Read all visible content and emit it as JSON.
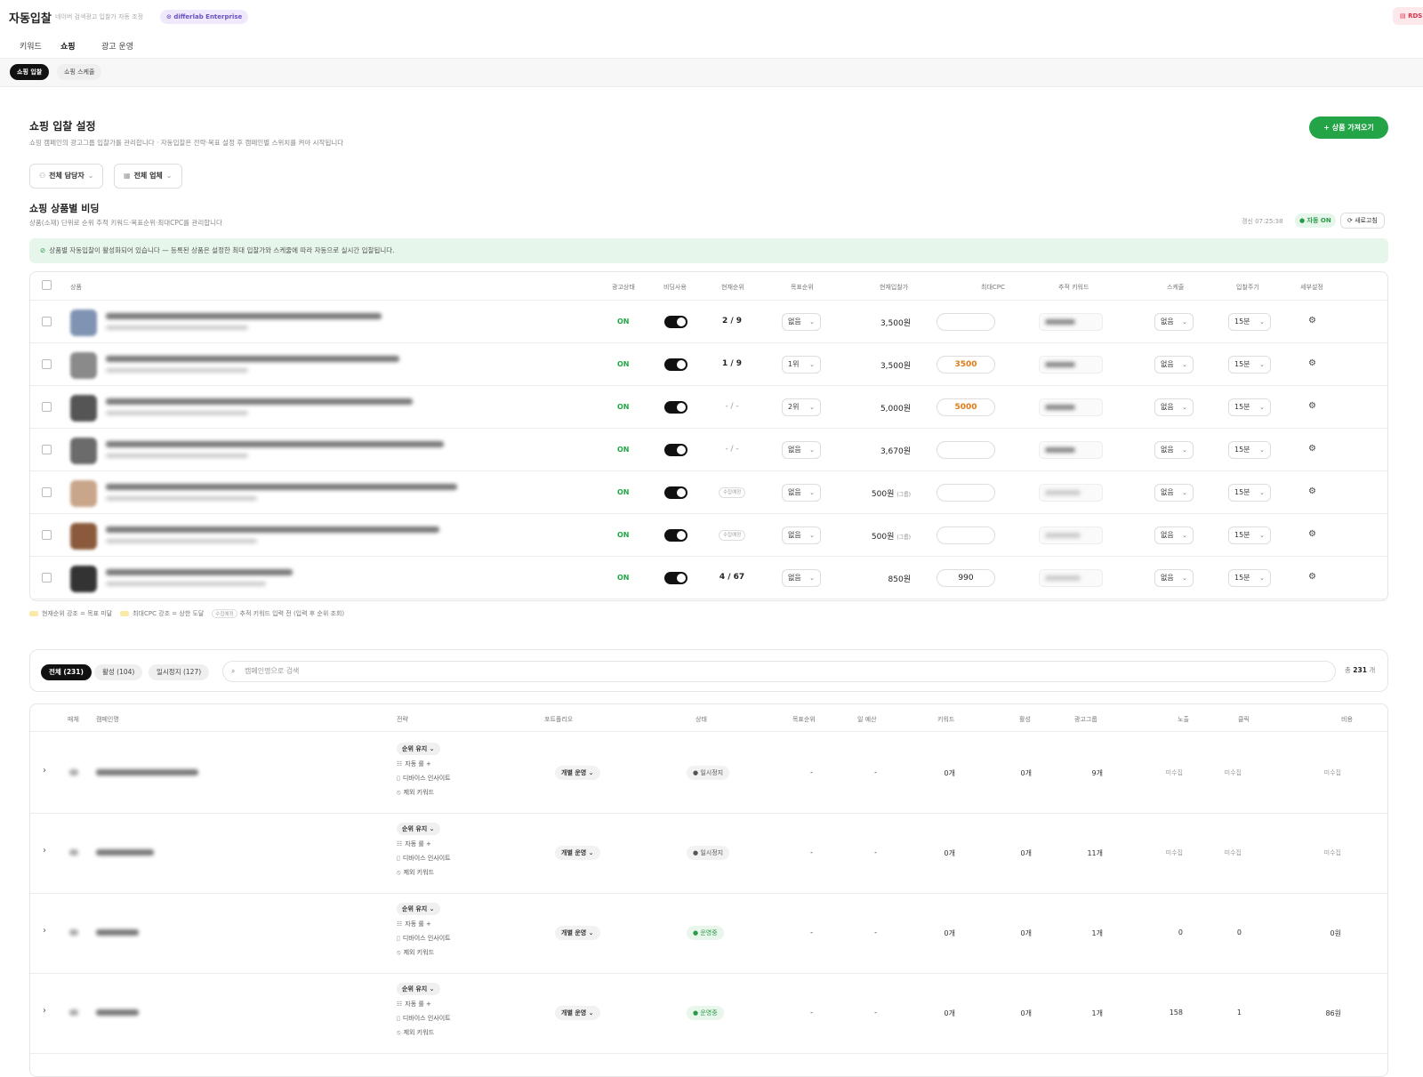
{
  "header": {
    "title": "자동입찰",
    "subtitle": "네이버 검색광고 입찰가 자동 조정",
    "org_badge": "differlab Enterprise",
    "db_badge": "RDS"
  },
  "tabs": [
    {
      "label": "키워드",
      "active": false
    },
    {
      "label": "쇼핑",
      "active": true
    },
    {
      "label": "광고 운영",
      "active": false
    }
  ],
  "subtabs": [
    {
      "label": "쇼핑 입찰",
      "active": true
    },
    {
      "label": "쇼핑 스케줄",
      "active": false
    }
  ],
  "settings": {
    "title": "쇼핑 입찰 설정",
    "description": "쇼핑 캠페인의 광고그룹 입찰가를 관리합니다 · 자동입찰은 전략·목표 설정 후 캠페인별 스위치를 켜야 시작됩니다",
    "import_button": "상품 가져오기",
    "filters": [
      "전체 담당자",
      "전체 업체"
    ]
  },
  "bidding": {
    "title": "쇼핑 상품별 비딩",
    "description": "상품(소재) 단위로 순위 추적 키워드·목표순위·최대CPC를 관리합니다",
    "updated": "갱신 07:25:38",
    "auto_status": "자동 ON",
    "refresh_label": "새로고침",
    "notice": "상품별 자동입찰이 활성화되어 있습니다 — 등록된 상품은 설정한 최대 입찰가와 스케줄에 따라 자동으로 실시간 입찰됩니다."
  },
  "product_table": {
    "headers": [
      "상품",
      "광고상태",
      "비딩사용",
      "현재순위",
      "목표순위",
      "현재입찰가",
      "최대CPC",
      "추적 키워드",
      "스케줄",
      "입찰주기",
      "세부설정"
    ],
    "rows": [
      {
        "status": "ON",
        "rank": "2 / 9",
        "rank_type": "value",
        "target": "없음",
        "bid": "3,500원",
        "bid_note": "",
        "cpc": "",
        "schedule": "없음",
        "cycle": "15분",
        "thumb": "#7f93b3",
        "w1": 310,
        "w2": 160
      },
      {
        "status": "ON",
        "rank": "1 / 9",
        "rank_type": "value",
        "target": "1위",
        "bid": "3,500원",
        "bid_note": "",
        "cpc": "3500",
        "schedule": "없음",
        "cycle": "15분",
        "thumb": "#8a8a8a",
        "w1": 330,
        "w2": 160
      },
      {
        "status": "ON",
        "rank": "- / -",
        "rank_type": "dim",
        "target": "2위",
        "bid": "5,000원",
        "bid_note": "",
        "cpc": "5000",
        "schedule": "없음",
        "cycle": "15분",
        "thumb": "#555",
        "w1": 345,
        "w2": 160
      },
      {
        "status": "ON",
        "rank": "- / -",
        "rank_type": "dim",
        "target": "없음",
        "bid": "3,670원",
        "bid_note": "",
        "cpc": "",
        "schedule": "없음",
        "cycle": "15분",
        "thumb": "#6b6b6b",
        "w1": 380,
        "w2": 160
      },
      {
        "status": "ON",
        "rank": "수집예정",
        "rank_type": "tag",
        "target": "없음",
        "bid": "500원",
        "bid_note": "(그룹)",
        "cpc": "",
        "schedule": "없음",
        "cycle": "15분",
        "thumb": "#c9a58a",
        "w1": 395,
        "w2": 170
      },
      {
        "status": "ON",
        "rank": "수집예정",
        "rank_type": "tag",
        "target": "없음",
        "bid": "500원",
        "bid_note": "(그룹)",
        "cpc": "",
        "schedule": "없음",
        "cycle": "15분",
        "thumb": "#8b5a3c",
        "w1": 375,
        "w2": 170
      },
      {
        "status": "ON",
        "rank": "4 / 67",
        "rank_type": "value",
        "target": "없음",
        "bid": "850원",
        "bid_note": "",
        "cpc": "990",
        "schedule": "없음",
        "cycle": "15분",
        "thumb": "#333",
        "w1": 210,
        "w2": 180
      }
    ],
    "legend": [
      {
        "text": "현재순위 강조 = 목표 미달"
      },
      {
        "text": "최대CPC 강조 = 상한 도달"
      },
      {
        "tag": "수집예정",
        "text": "추적 키워드 입력 전 (입력 후 순위 조회)"
      }
    ]
  },
  "campaign_filter": {
    "pills": [
      "전체 (231)",
      "활성 (104)",
      "일시정지 (127)"
    ],
    "search_placeholder": "캠페인명으로 검색",
    "total_prefix": "총",
    "total_count": "231",
    "total_suffix": "개"
  },
  "campaign_table": {
    "headers": [
      "매체",
      "캠페인명",
      "전략",
      "포트폴리오",
      "상태",
      "목표순위",
      "일 예산",
      "키워드",
      "활성",
      "광고그룹",
      "노출",
      "클릭",
      "비용"
    ],
    "strategy_items": [
      "자동 룰 +",
      "디바이스 인사이트",
      "제외 키워드"
    ],
    "rows": [
      {
        "strategy": "순위 유지",
        "portfolio": "개별 운영",
        "status": "일시정지",
        "running": false,
        "target": "-",
        "budget": "-",
        "keywords": "0개",
        "active": "0개",
        "groups": "9개",
        "impr": "미수집",
        "clicks": "미수집",
        "cost": "미수집",
        "name_w": 115
      },
      {
        "strategy": "순위 유지",
        "portfolio": "개별 운영",
        "status": "일시정지",
        "running": false,
        "target": "-",
        "budget": "-",
        "keywords": "0개",
        "active": "0개",
        "groups": "11개",
        "impr": "미수집",
        "clicks": "미수집",
        "cost": "미수집",
        "name_w": 65
      },
      {
        "strategy": "순위 유지",
        "portfolio": "개별 운영",
        "status": "운영중",
        "running": true,
        "target": "-",
        "budget": "-",
        "keywords": "0개",
        "active": "0개",
        "groups": "1개",
        "impr": "0",
        "clicks": "0",
        "cost": "0원",
        "name_w": 48
      },
      {
        "strategy": "순위 유지",
        "portfolio": "개별 운영",
        "status": "운영중",
        "running": true,
        "target": "-",
        "budget": "-",
        "keywords": "0개",
        "active": "0개",
        "groups": "1개",
        "impr": "158",
        "clicks": "1",
        "cost": "86원",
        "name_w": 48
      }
    ]
  },
  "colors": {
    "accent_green": "#22a447",
    "orange": "#e07a16",
    "dark": "#111111"
  }
}
